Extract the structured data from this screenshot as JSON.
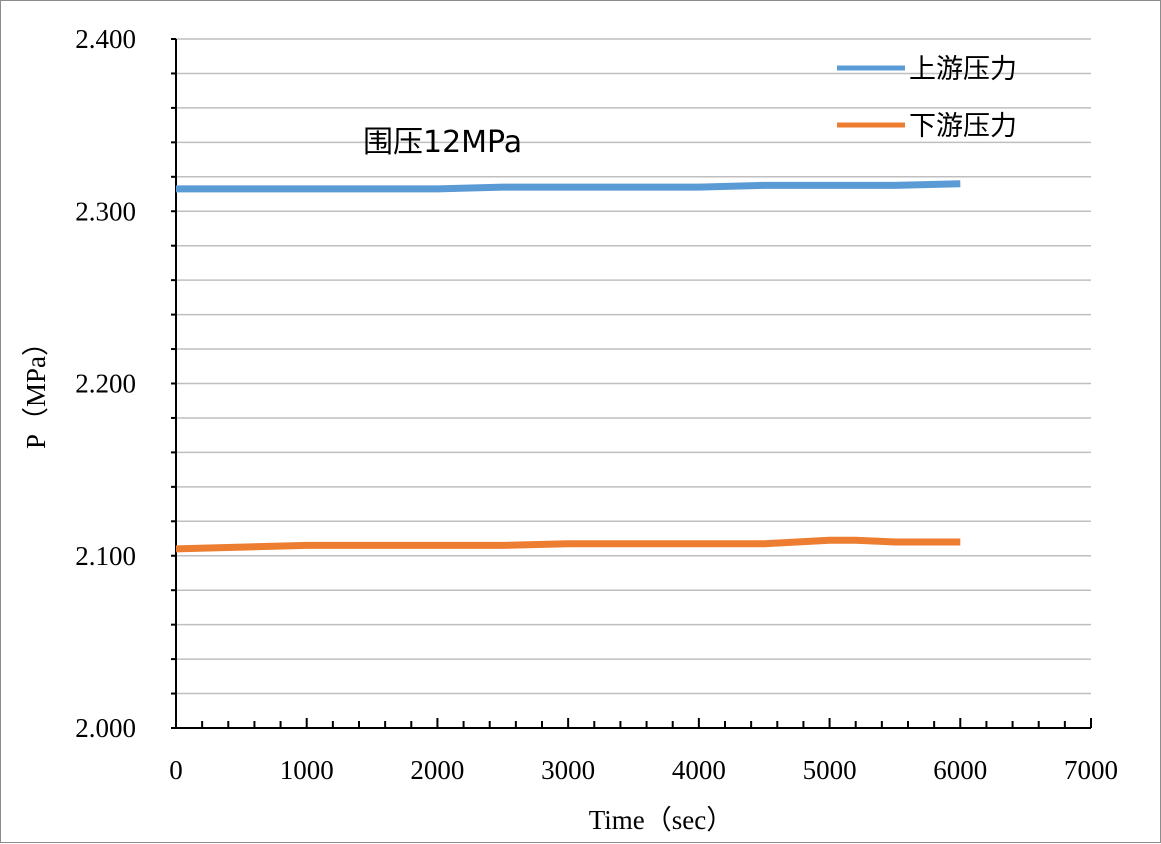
{
  "chart_data": {
    "type": "line",
    "title": "",
    "annotation": "围压12MPa",
    "xlabel": "Time（sec）",
    "ylabel": "P（MPa）",
    "xlim": [
      0,
      7000
    ],
    "ylim": [
      2.0,
      2.4
    ],
    "x_ticks": [
      "0",
      "1000",
      "2000",
      "3000",
      "4000",
      "5000",
      "6000",
      "7000"
    ],
    "y_ticks": [
      "2.000",
      "2.100",
      "2.200",
      "2.300",
      "2.400"
    ],
    "grid": "horizontal",
    "legend_position": "top-right",
    "series": [
      {
        "name": "上游压力",
        "color": "#5b9bd5",
        "x": [
          0,
          500,
          1000,
          1500,
          2000,
          2500,
          3000,
          3500,
          4000,
          4500,
          5000,
          5500,
          6000
        ],
        "y": [
          2.313,
          2.313,
          2.313,
          2.313,
          2.313,
          2.314,
          2.314,
          2.314,
          2.314,
          2.315,
          2.315,
          2.315,
          2.316
        ]
      },
      {
        "name": "下游压力",
        "color": "#ed7d31",
        "x": [
          0,
          500,
          1000,
          1500,
          2000,
          2500,
          3000,
          3500,
          4000,
          4500,
          5000,
          5200,
          5500,
          6000
        ],
        "y": [
          2.104,
          2.105,
          2.106,
          2.106,
          2.106,
          2.106,
          2.107,
          2.107,
          2.107,
          2.107,
          2.109,
          2.109,
          2.108,
          2.108
        ]
      }
    ]
  }
}
